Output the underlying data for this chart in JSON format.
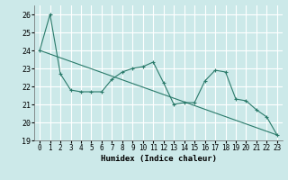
{
  "xlabel": "Humidex (Indice chaleur)",
  "xlim": [
    -0.5,
    23.5
  ],
  "ylim": [
    19,
    26.5
  ],
  "yticks": [
    19,
    20,
    21,
    22,
    23,
    24,
    25,
    26
  ],
  "xticks": [
    0,
    1,
    2,
    3,
    4,
    5,
    6,
    7,
    8,
    9,
    10,
    11,
    12,
    13,
    14,
    15,
    16,
    17,
    18,
    19,
    20,
    21,
    22,
    23
  ],
  "bg_color": "#cce9e9",
  "grid_color": "#ffffff",
  "line_color": "#2a7a6a",
  "data_x": [
    0,
    1,
    2,
    3,
    4,
    5,
    6,
    7,
    8,
    9,
    10,
    11,
    12,
    13,
    14,
    15,
    16,
    17,
    18,
    19,
    20,
    21,
    22,
    23
  ],
  "data_y": [
    24.0,
    26.0,
    22.7,
    21.8,
    21.7,
    21.7,
    21.7,
    22.4,
    22.8,
    23.0,
    23.1,
    23.35,
    22.2,
    21.0,
    21.1,
    21.1,
    22.3,
    22.9,
    22.8,
    21.3,
    21.2,
    20.7,
    20.3,
    19.3
  ],
  "trend_x": [
    0,
    23
  ],
  "trend_y": [
    24.0,
    19.3
  ],
  "xlabel_fontsize": 6.5,
  "tick_fontsize": 5.5
}
